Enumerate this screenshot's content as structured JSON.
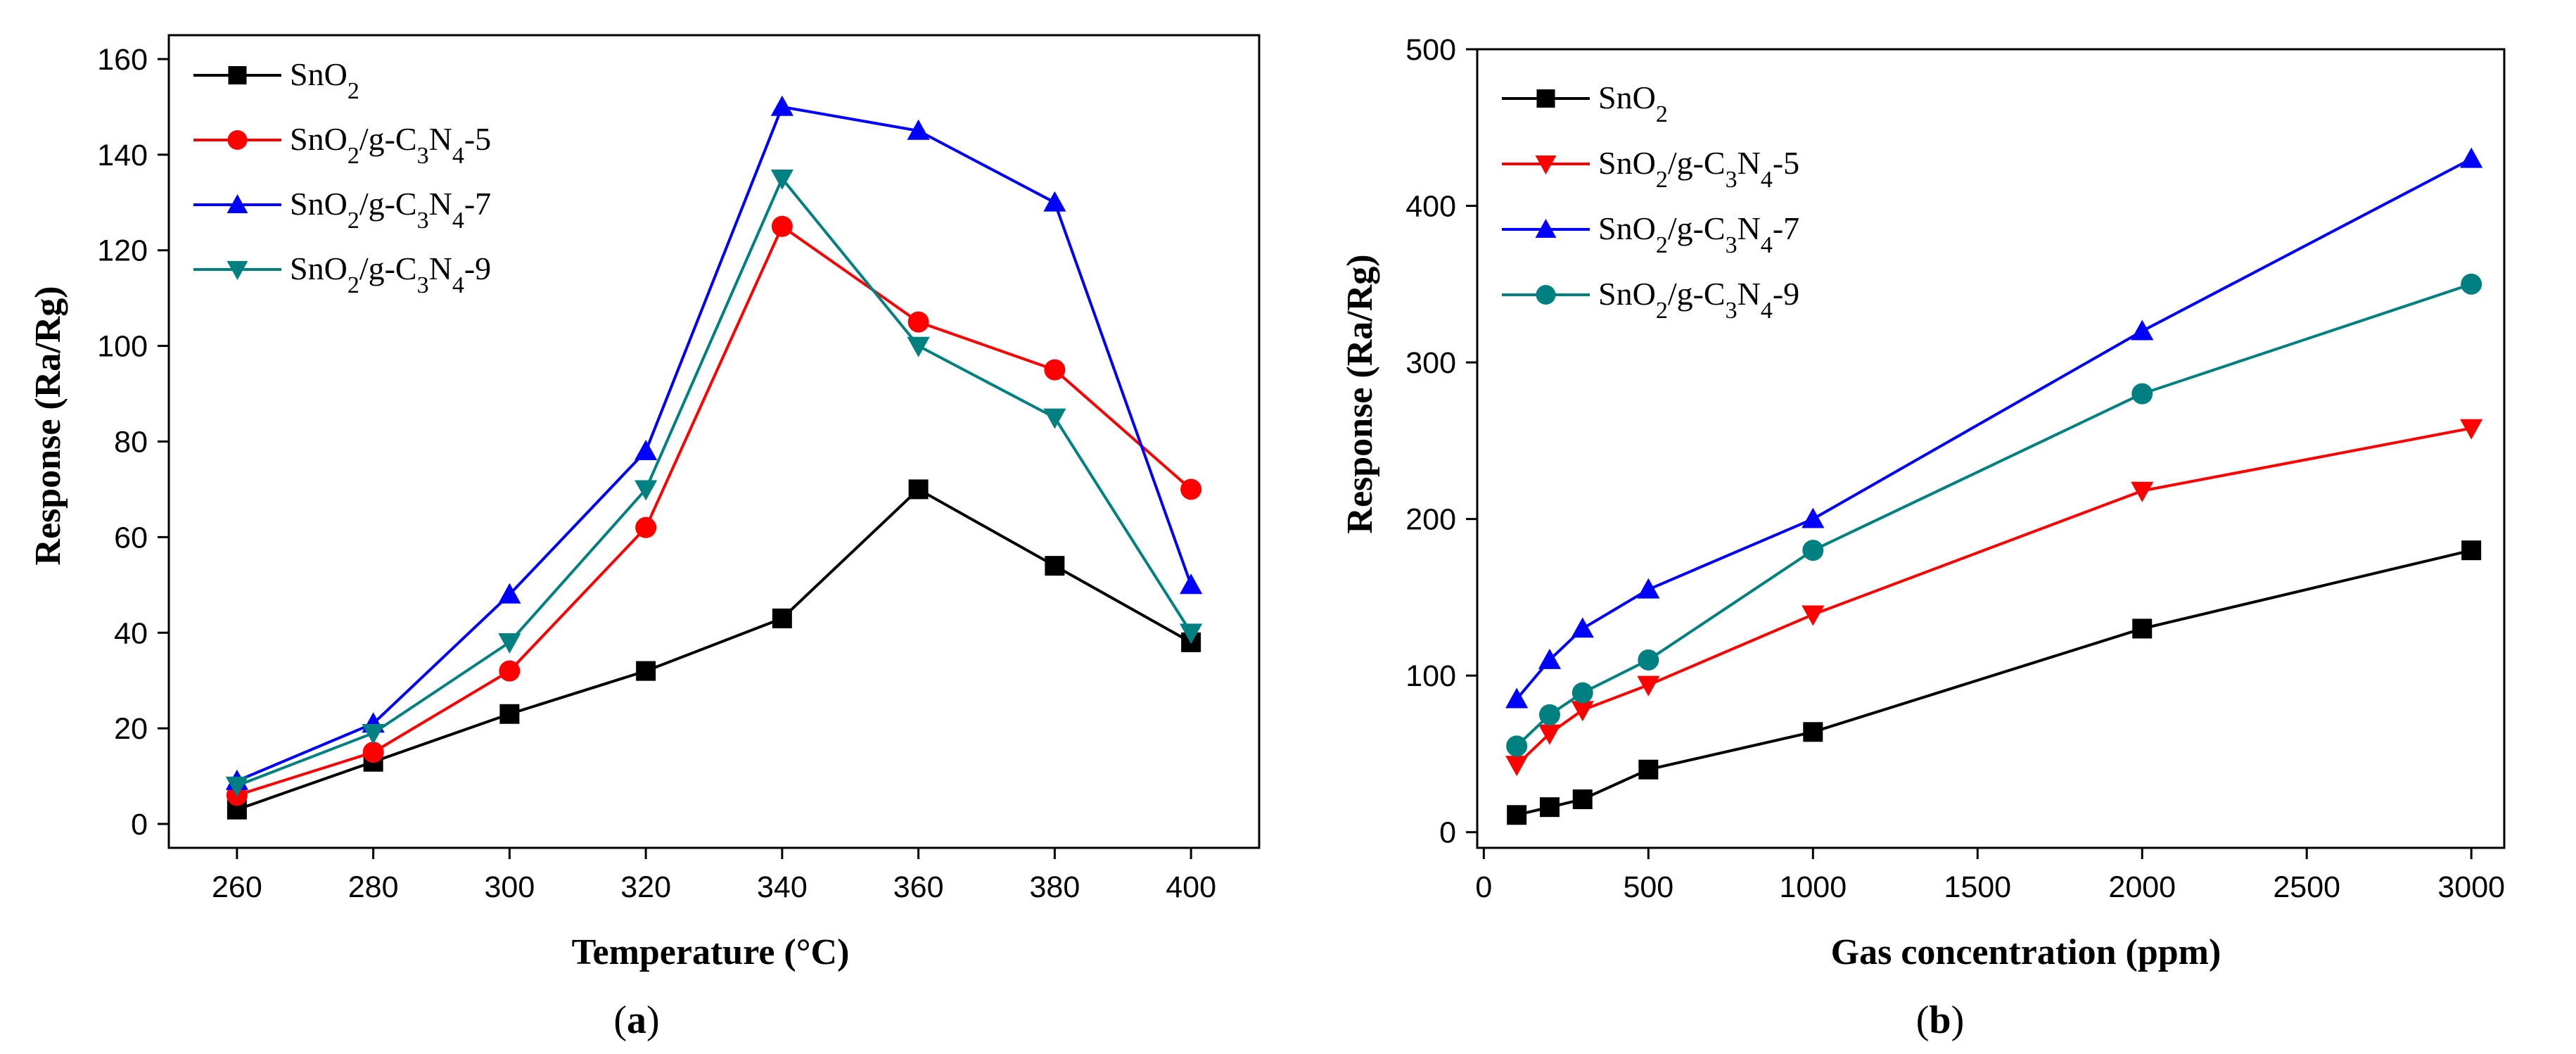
{
  "chart_data": [
    {
      "id": "a",
      "type": "line",
      "caption_letter": "a",
      "xlabel": "Temperature (°C)",
      "ylabel": "Response (Ra/Rg)",
      "xlim": [
        250,
        410
      ],
      "ylim": [
        -5,
        165
      ],
      "xticks": [
        260,
        280,
        300,
        320,
        340,
        360,
        380,
        400
      ],
      "yticks": [
        0,
        20,
        40,
        60,
        80,
        100,
        120,
        140,
        160
      ],
      "legend_position": "top-left",
      "grid": false,
      "series": [
        {
          "name": "SnO2",
          "label_parts": [
            "SnO",
            "2",
            ""
          ],
          "color": "#000000",
          "marker": "square",
          "x": [
            260,
            280,
            300,
            320,
            340,
            360,
            380,
            400
          ],
          "y": [
            3,
            13,
            23,
            32,
            43,
            70,
            54,
            38
          ]
        },
        {
          "name": "SnO2/g-C3N4-5",
          "label_parts": [
            "SnO",
            "2",
            "/g-C",
            "3",
            "N",
            "4",
            "-5"
          ],
          "color": "#ff0000",
          "marker": "circle",
          "x": [
            260,
            280,
            300,
            320,
            340,
            360,
            380,
            400
          ],
          "y": [
            6,
            15,
            32,
            62,
            125,
            105,
            95,
            70
          ]
        },
        {
          "name": "SnO2/g-C3N4-7",
          "label_parts": [
            "SnO",
            "2",
            "/g-C",
            "3",
            "N",
            "4",
            "-7"
          ],
          "color": "#0000ff",
          "marker": "triangle-up",
          "x": [
            260,
            280,
            300,
            320,
            340,
            360,
            380,
            400
          ],
          "y": [
            9,
            21,
            48,
            78,
            150,
            145,
            130,
            50
          ]
        },
        {
          "name": "SnO2/g-C3N4-9",
          "label_parts": [
            "SnO",
            "2",
            "/g-C",
            "3",
            "N",
            "4",
            "-9"
          ],
          "color": "#008080",
          "marker": "triangle-down",
          "x": [
            260,
            280,
            300,
            320,
            340,
            360,
            380,
            400
          ],
          "y": [
            8,
            19,
            38,
            70,
            135,
            100,
            85,
            40
          ]
        }
      ]
    },
    {
      "id": "b",
      "type": "line",
      "caption_letter": "b",
      "xlabel": "Gas concentration (ppm)",
      "ylabel": "Response (Ra/Rg)",
      "xlim": [
        -20,
        3100
      ],
      "ylim": [
        -10,
        500
      ],
      "xticks": [
        0,
        500,
        1000,
        1500,
        2000,
        2500,
        3000
      ],
      "yticks": [
        0,
        100,
        200,
        300,
        400,
        500
      ],
      "legend_position": "top-left",
      "grid": false,
      "series": [
        {
          "name": "SnO2",
          "label_parts": [
            "SnO",
            "2",
            ""
          ],
          "color": "#000000",
          "marker": "square",
          "x": [
            100,
            200,
            300,
            500,
            1000,
            2000,
            3000
          ],
          "y": [
            11,
            16,
            21,
            40,
            64,
            130,
            180
          ]
        },
        {
          "name": "SnO2/g-C3N4-5",
          "label_parts": [
            "SnO",
            "2",
            "/g-C",
            "3",
            "N",
            "4",
            "-5"
          ],
          "color": "#ff0000",
          "marker": "triangle-down",
          "x": [
            100,
            200,
            300,
            500,
            1000,
            2000,
            3000
          ],
          "y": [
            43,
            63,
            78,
            94,
            139,
            218,
            258
          ]
        },
        {
          "name": "SnO2/g-C3N4-7",
          "label_parts": [
            "SnO",
            "2",
            "/g-C",
            "3",
            "N",
            "4",
            "-7"
          ],
          "color": "#0000ff",
          "marker": "triangle-up",
          "x": [
            100,
            200,
            300,
            500,
            1000,
            2000,
            3000
          ],
          "y": [
            85,
            110,
            130,
            155,
            200,
            320,
            430
          ]
        },
        {
          "name": "SnO2/g-C3N4-9",
          "label_parts": [
            "SnO",
            "2",
            "/g-C",
            "3",
            "N",
            "4",
            "-9"
          ],
          "color": "#008080",
          "marker": "circle",
          "x": [
            100,
            200,
            300,
            500,
            1000,
            2000,
            3000
          ],
          "y": [
            55,
            75,
            89,
            110,
            180,
            280,
            350
          ]
        }
      ]
    }
  ]
}
